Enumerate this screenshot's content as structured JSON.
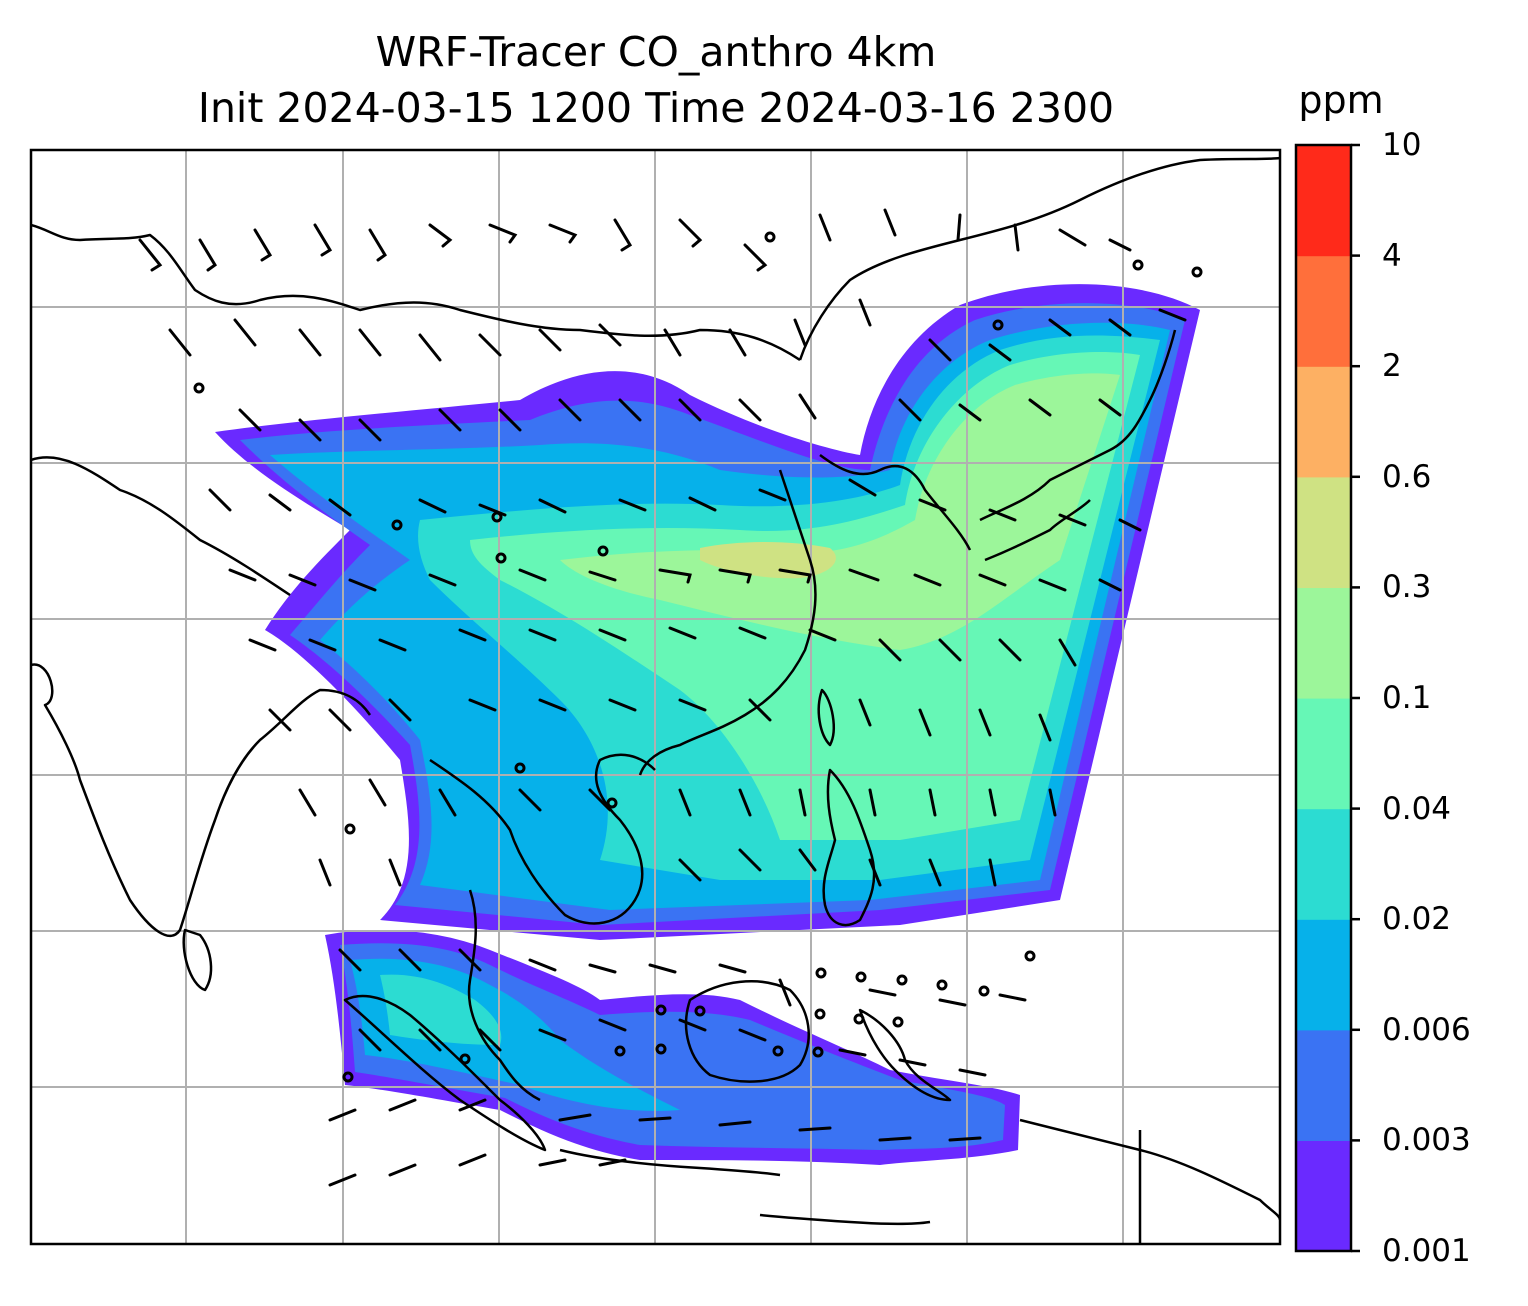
{
  "title": {
    "line1": "WRF-Tracer CO_anthro 4km",
    "line2": "Init 2024-03-15 1200 Time 2024-03-16 2300"
  },
  "colorbar": {
    "unit": "ppm",
    "levels": [
      "0.001",
      "0.003",
      "0.006",
      "0.02",
      "0.04",
      "0.1",
      "0.3",
      "0.6",
      "2",
      "4",
      "10"
    ],
    "colors": [
      "#6a2aff",
      "#3a73f3",
      "#06b1ea",
      "#2cdcd2",
      "#66f7b6",
      "#9cf69a",
      "#cfe283",
      "#fdb063",
      "#ff6f3b",
      "#ff2a1a"
    ]
  },
  "map": {
    "gridlines": true,
    "overlays": [
      "coastlines",
      "country-borders",
      "wind-barbs"
    ],
    "colors": {
      "land_line": "#000000",
      "grid_line": "#b0b0b0"
    }
  }
}
